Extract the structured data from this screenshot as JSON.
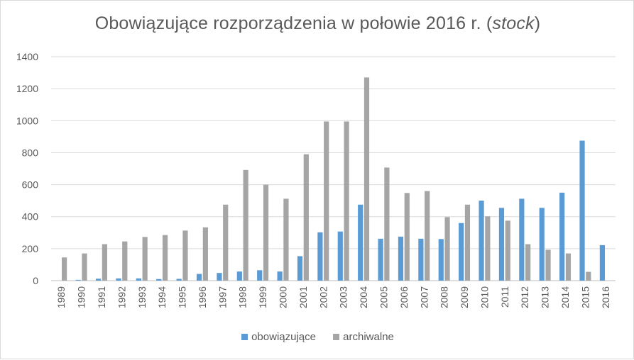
{
  "chart_data": {
    "type": "bar",
    "title_main": "Obowiązujące rozporządzenia w połowie 2016 r. (",
    "title_italic": "stock",
    "title_end": ")",
    "xlabel": "",
    "ylabel": "",
    "ylim": [
      0,
      1400
    ],
    "yticks": [
      0,
      200,
      400,
      600,
      800,
      1000,
      1200,
      1400
    ],
    "grid": true,
    "legend_position": "bottom",
    "categories": [
      "1989",
      "1990",
      "1991",
      "1992",
      "1993",
      "1994",
      "1995",
      "1996",
      "1997",
      "1998",
      "1999",
      "2000",
      "2001",
      "2002",
      "2003",
      "2004",
      "2005",
      "2006",
      "2007",
      "2008",
      "2009",
      "2010",
      "2011",
      "2012",
      "2013",
      "2014",
      "2015",
      "2016"
    ],
    "series": [
      {
        "name": "obowiązujące",
        "color": "#5b9bd5",
        "values": [
          0,
          5,
          12,
          14,
          14,
          10,
          11,
          42,
          48,
          57,
          65,
          57,
          153,
          302,
          307,
          475,
          262,
          275,
          262,
          260,
          360,
          500,
          455,
          512,
          455,
          550,
          875,
          222
        ]
      },
      {
        "name": "archiwalne",
        "color": "#a5a5a5",
        "values": [
          145,
          170,
          228,
          245,
          273,
          285,
          313,
          333,
          475,
          692,
          600,
          512,
          790,
          995,
          995,
          1270,
          707,
          548,
          560,
          397,
          475,
          402,
          375,
          228,
          193,
          170,
          55,
          0
        ]
      }
    ]
  }
}
